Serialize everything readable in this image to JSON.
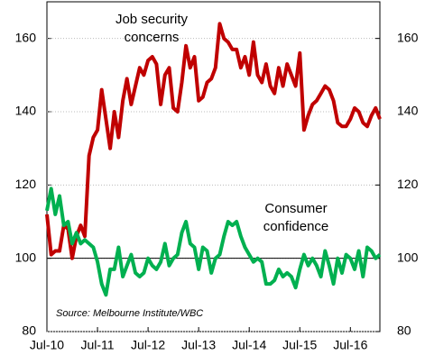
{
  "chart_data": {
    "type": "line",
    "categories": [
      "Jul-10",
      null,
      null,
      null,
      null,
      null,
      null,
      null,
      null,
      null,
      null,
      null,
      "Jul-11",
      null,
      null,
      null,
      null,
      null,
      null,
      null,
      null,
      null,
      null,
      null,
      "Jul-12",
      null,
      null,
      null,
      null,
      null,
      null,
      null,
      null,
      null,
      null,
      null,
      "Jul-13",
      null,
      null,
      null,
      null,
      null,
      null,
      null,
      null,
      null,
      null,
      null,
      "Jul-14",
      null,
      null,
      null,
      null,
      null,
      null,
      null,
      null,
      null,
      null,
      null,
      "Jul-15",
      null,
      null,
      null,
      null,
      null,
      null,
      null,
      null,
      null,
      null,
      null,
      "Jul-16",
      null,
      null,
      null,
      null,
      null,
      null,
      null
    ],
    "series": [
      {
        "label_lines": [
          "Job security",
          "concerns"
        ],
        "color": "#c00000",
        "values": [
          112,
          101,
          102,
          102,
          109,
          108,
          100,
          106,
          109,
          106,
          128,
          133,
          135,
          146,
          138,
          130,
          140,
          133,
          143,
          149,
          142,
          147,
          152,
          150,
          154,
          155,
          153,
          142,
          150,
          152,
          141,
          140,
          148,
          158,
          152,
          155,
          143,
          144,
          148,
          149,
          152,
          164,
          160,
          159,
          157,
          157,
          152,
          155,
          150,
          159,
          150,
          148,
          153,
          147,
          145,
          152,
          147,
          153,
          150,
          147,
          156,
          135,
          139,
          142,
          143,
          145,
          147,
          146,
          143,
          137,
          136,
          136,
          138,
          141,
          140,
          137,
          136,
          139,
          141,
          138
        ]
      },
      {
        "label_lines": [
          "Consumer",
          "confidence"
        ],
        "color": "#00b050",
        "values": [
          113,
          119,
          112,
          117,
          109,
          110,
          104,
          107,
          104,
          105,
          104,
          103,
          99,
          93,
          90,
          97,
          97,
          103,
          95,
          98,
          101,
          96,
          95,
          96,
          100,
          98,
          97,
          99,
          104,
          98,
          100,
          101,
          107,
          110,
          104,
          103,
          97,
          103,
          102,
          96,
          100,
          101,
          106,
          110,
          109,
          110,
          106,
          103,
          101,
          99,
          100,
          99,
          93,
          93,
          94,
          97,
          95,
          96,
          95,
          92,
          97,
          101,
          98,
          100,
          98,
          95,
          102,
          98,
          93,
          100,
          96,
          101,
          100,
          97,
          102,
          95,
          103,
          102,
          100,
          101
        ]
      }
    ],
    "ylim": [
      80,
      170
    ],
    "yticks": [
      80,
      100,
      120,
      140,
      160
    ],
    "y2lim": [
      80,
      170
    ],
    "y2ticks": [
      80,
      100,
      120,
      140,
      160
    ],
    "grid": true,
    "hline": 100,
    "source": "Source: Melbourne Institute/WBC"
  }
}
